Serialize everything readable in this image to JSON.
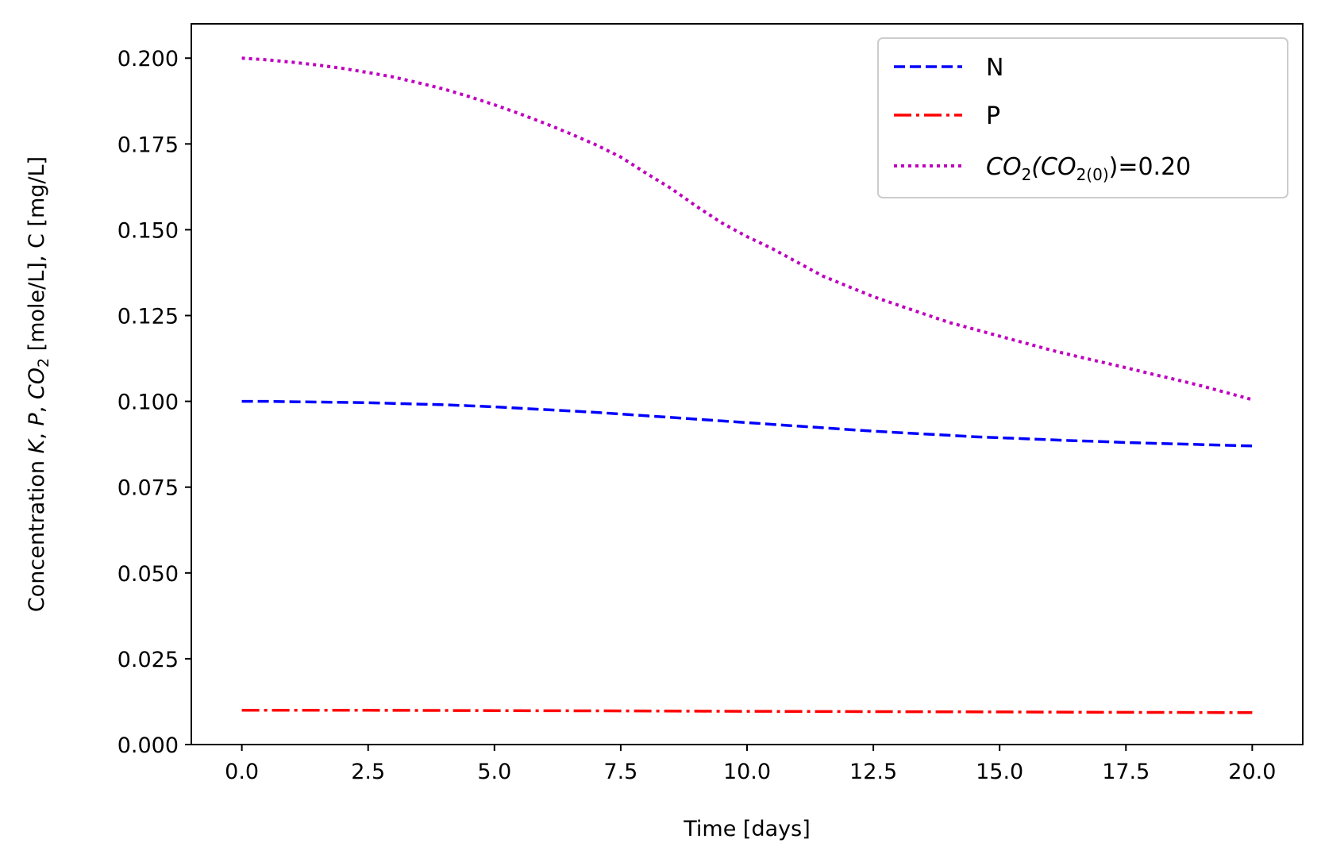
{
  "chart_data": {
    "type": "line",
    "xlabel": "Time [days]",
    "ylabel": {
      "parts": [
        "Concentration ",
        "K",
        ", ",
        "P",
        ", ",
        "CO",
        "2",
        " [mole/L], C [mg/L]"
      ]
    },
    "xlim": [
      -1.0,
      21.0
    ],
    "ylim": [
      0.0,
      0.21
    ],
    "xticks": [
      0.0,
      2.5,
      5.0,
      7.5,
      10.0,
      12.5,
      15.0,
      17.5,
      20.0
    ],
    "xtick_labels": [
      "0.0",
      "2.5",
      "5.0",
      "7.5",
      "10.0",
      "12.5",
      "15.0",
      "17.5",
      "20.0"
    ],
    "yticks": [
      0.0,
      0.025,
      0.05,
      0.075,
      0.1,
      0.125,
      0.15,
      0.175,
      0.2
    ],
    "ytick_labels": [
      "0.000",
      "0.025",
      "0.050",
      "0.075",
      "0.100",
      "0.125",
      "0.150",
      "0.175",
      "0.200"
    ],
    "grid": false,
    "legend_position": "top-right",
    "series": [
      {
        "name": "N",
        "color": "#0000ff",
        "style": "dashed",
        "x": [
          0,
          0.5,
          1,
          1.5,
          2,
          2.5,
          3,
          3.5,
          4,
          4.5,
          5,
          5.5,
          6,
          6.5,
          7,
          7.5,
          8,
          8.5,
          9,
          9.5,
          10,
          10.5,
          11,
          11.5,
          12,
          12.5,
          13,
          13.5,
          14,
          14.5,
          15,
          15.5,
          16,
          16.5,
          17,
          17.5,
          18,
          18.5,
          19,
          19.5,
          20
        ],
        "y": [
          0.1,
          0.1,
          0.0999,
          0.0998,
          0.0997,
          0.0996,
          0.0994,
          0.0992,
          0.099,
          0.0987,
          0.0984,
          0.098,
          0.0976,
          0.0972,
          0.0968,
          0.0963,
          0.0958,
          0.0953,
          0.0948,
          0.0943,
          0.0938,
          0.0933,
          0.0928,
          0.0923,
          0.0918,
          0.0913,
          0.0909,
          0.0905,
          0.0901,
          0.0897,
          0.0894,
          0.0891,
          0.0888,
          0.0885,
          0.0883,
          0.088,
          0.0878,
          0.0876,
          0.0874,
          0.0872,
          0.087
        ]
      },
      {
        "name": "P",
        "color": "#ff0000",
        "style": "dashdot",
        "x": [
          0,
          2.5,
          5,
          7.5,
          10,
          12.5,
          15,
          17.5,
          20
        ],
        "y": [
          0.01,
          0.01,
          0.0099,
          0.0098,
          0.0097,
          0.0096,
          0.0095,
          0.0094,
          0.0093
        ]
      },
      {
        "name": "CO2(CO2(0))=0.20",
        "legend_parts": [
          "CO",
          "2",
          "(CO",
          "2(0)",
          ")=0.20"
        ],
        "color": "#bf00bf",
        "style": "dotted",
        "x": [
          0,
          0.5,
          1,
          1.5,
          2,
          2.5,
          3,
          3.5,
          4,
          4.5,
          5,
          5.5,
          6,
          6.5,
          7,
          7.5,
          8,
          8.5,
          9,
          9.5,
          10,
          10.5,
          11,
          11.5,
          12,
          12.5,
          13,
          13.5,
          14,
          14.5,
          15,
          15.5,
          16,
          16.5,
          17,
          17.5,
          18,
          18.5,
          19,
          19.5,
          20
        ],
        "y": [
          0.2,
          0.1995,
          0.1988,
          0.198,
          0.197,
          0.1958,
          0.1945,
          0.1928,
          0.191,
          0.1888,
          0.1864,
          0.1838,
          0.181,
          0.178,
          0.1748,
          0.1712,
          0.1665,
          0.162,
          0.1568,
          0.152,
          0.148,
          0.1445,
          0.1405,
          0.1365,
          0.1335,
          0.1305,
          0.128,
          0.1255,
          0.123,
          0.121,
          0.119,
          0.117,
          0.115,
          0.1132,
          0.1115,
          0.1098,
          0.108,
          0.1063,
          0.1045,
          0.1025,
          0.1005
        ]
      }
    ]
  }
}
